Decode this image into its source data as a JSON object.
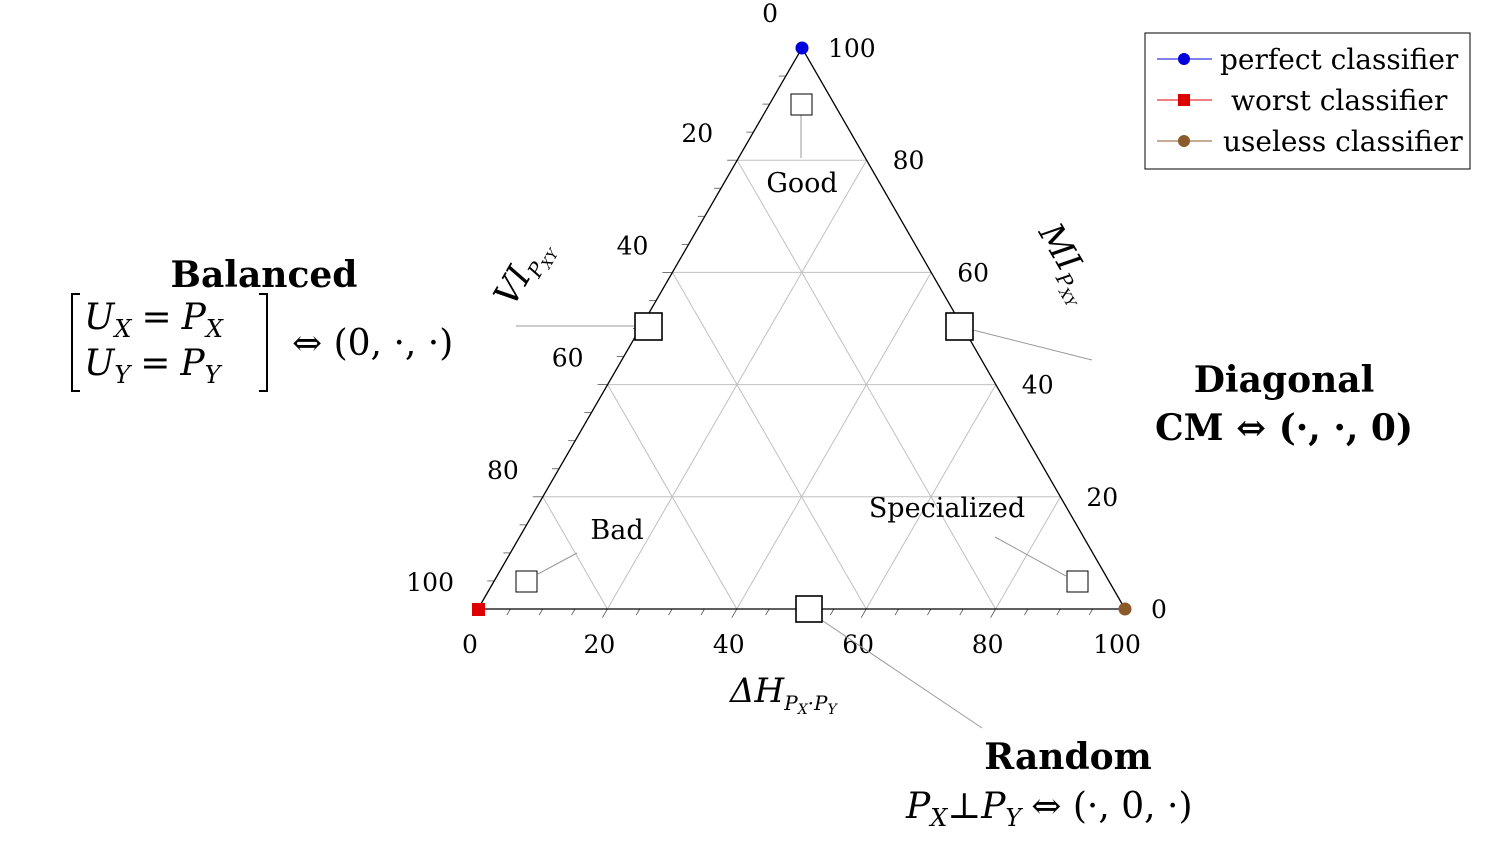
{
  "ternary": {
    "axes": {
      "bottom": {
        "label": "ΔH",
        "label_sub": "P",
        "label_sub2": "X",
        "label_sub3": "·",
        "label_sub4": "P",
        "label_sub5": "Y",
        "ticks": [
          "0",
          "20",
          "40",
          "60",
          "80",
          "100"
        ]
      },
      "left": {
        "label": "VI",
        "label_sub": "P",
        "label_sub2": "XY",
        "ticks": [
          "0",
          "20",
          "40",
          "60",
          "80",
          "100"
        ]
      },
      "right": {
        "label": "MI",
        "label_sub": "P",
        "label_sub2": "XY",
        "ticks": [
          "0",
          "20",
          "40",
          "60",
          "80",
          "100"
        ]
      }
    },
    "regions": {
      "good": "Good",
      "bad": "Bad",
      "specialized": "Specialized"
    }
  },
  "legend": {
    "items": [
      {
        "label": "perfect classifier",
        "color": "#0000dd",
        "marker": "circle"
      },
      {
        "label": "worst classifier",
        "color": "#dd0000",
        "marker": "square"
      },
      {
        "label": "useless classifier",
        "color": "#8b5a2b",
        "marker": "circle"
      }
    ]
  },
  "annotations": {
    "balanced": {
      "title": "Balanced",
      "row1_a": "U",
      "row1_a_sub": "X",
      "row1_eq": "=",
      "row1_b": "P",
      "row1_b_sub": "X",
      "row2_a": "U",
      "row2_a_sub": "Y",
      "row2_eq": "=",
      "row2_b": "P",
      "row2_b_sub": "Y",
      "equiv": "⇔ (0, ·, ·)"
    },
    "diagonal": {
      "title": "Diagonal",
      "line2": "CM ⇔ (·, ·, 0)"
    },
    "random": {
      "title": "Random",
      "a": "P",
      "a_sub": "X",
      "perp": "⊥",
      "b": "P",
      "b_sub": "Y",
      "equiv": "⇔ (·, 0, ·)"
    }
  }
}
